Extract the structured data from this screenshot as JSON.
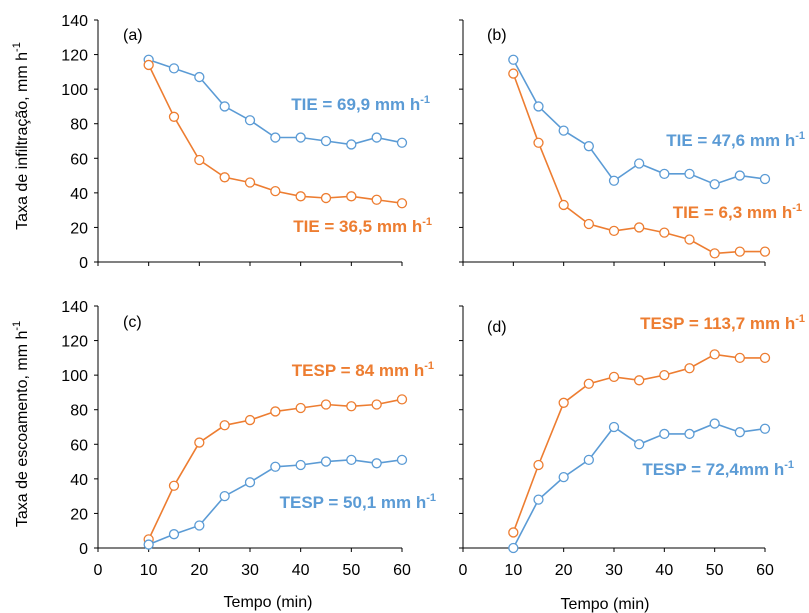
{
  "colors": {
    "blue": "#5b9bd5",
    "orange": "#ed7d31",
    "axis": "#000000"
  },
  "y_labels": {
    "top": "Taxa de infiltração, mm h",
    "bottom": "Taxa de escoamento, mm h",
    "unit_sup": "-1"
  },
  "x_label": "Tempo (min)",
  "chart_data": [
    {
      "id": "a",
      "panel_label": "(a)",
      "type": "line",
      "xlim": [
        0,
        60
      ],
      "ylim": [
        0,
        140
      ],
      "x_ticks": [],
      "y_ticks": [
        0,
        20,
        40,
        60,
        80,
        100,
        120,
        140
      ],
      "series": [
        {
          "color": "#5b9bd5",
          "x": [
            10,
            15,
            20,
            25,
            30,
            35,
            40,
            45,
            50,
            55,
            60
          ],
          "y": [
            117,
            112,
            107,
            90,
            82,
            72,
            72,
            70,
            68,
            72,
            69
          ]
        },
        {
          "color": "#ed7d31",
          "x": [
            10,
            15,
            20,
            25,
            30,
            35,
            40,
            45,
            50,
            55,
            60
          ],
          "y": [
            114,
            84,
            59,
            49,
            46,
            41,
            38,
            37,
            38,
            36,
            34
          ]
        }
      ],
      "annotations": [
        {
          "text": "TIE = 69,9 mm h",
          "sup": "-1",
          "color": "#5b9bd5"
        },
        {
          "text": "TIE = 36,5 mm h",
          "sup": "-1",
          "color": "#ed7d31"
        }
      ]
    },
    {
      "id": "b",
      "panel_label": "(b)",
      "type": "line",
      "xlim": [
        0,
        60
      ],
      "ylim": [
        0,
        140
      ],
      "x_ticks": [],
      "y_ticks": [],
      "series": [
        {
          "color": "#5b9bd5",
          "x": [
            10,
            15,
            20,
            25,
            30,
            35,
            40,
            45,
            50,
            55,
            60
          ],
          "y": [
            117,
            90,
            76,
            67,
            47,
            57,
            51,
            51,
            45,
            50,
            48
          ]
        },
        {
          "color": "#ed7d31",
          "x": [
            10,
            15,
            20,
            25,
            30,
            35,
            40,
            45,
            50,
            55,
            60
          ],
          "y": [
            109,
            69,
            33,
            22,
            18,
            20,
            17,
            13,
            5,
            6,
            6
          ]
        }
      ],
      "annotations": [
        {
          "text": "TIE = 47,6 mm h",
          "sup": "-1",
          "color": "#5b9bd5"
        },
        {
          "text": "TIE = 6,3 mm h",
          "sup": "-1",
          "color": "#ed7d31"
        }
      ]
    },
    {
      "id": "c",
      "panel_label": "(c)",
      "type": "line",
      "xlim": [
        0,
        60
      ],
      "ylim": [
        0,
        140
      ],
      "x_ticks": [
        0,
        10,
        20,
        30,
        40,
        50,
        60
      ],
      "y_ticks": [
        0,
        20,
        40,
        60,
        80,
        100,
        120,
        140
      ],
      "series": [
        {
          "color": "#ed7d31",
          "x": [
            10,
            15,
            20,
            25,
            30,
            35,
            40,
            45,
            50,
            55,
            60
          ],
          "y": [
            5,
            36,
            61,
            71,
            74,
            79,
            81,
            83,
            82,
            83,
            86
          ]
        },
        {
          "color": "#5b9bd5",
          "x": [
            10,
            15,
            20,
            25,
            30,
            35,
            40,
            45,
            50,
            55,
            60
          ],
          "y": [
            2,
            8,
            13,
            30,
            38,
            47,
            48,
            50,
            51,
            49,
            51
          ]
        }
      ],
      "annotations": [
        {
          "text": "TESP = 84 mm h",
          "sup": "-1",
          "color": "#ed7d31"
        },
        {
          "text": "TESP = 50,1 mm h",
          "sup": "-1",
          "color": "#5b9bd5"
        }
      ]
    },
    {
      "id": "d",
      "panel_label": "(d)",
      "type": "line",
      "xlim": [
        0,
        60
      ],
      "ylim": [
        0,
        140
      ],
      "x_ticks": [
        0,
        10,
        20,
        30,
        40,
        50,
        60
      ],
      "y_ticks": [],
      "series": [
        {
          "color": "#ed7d31",
          "x": [
            10,
            15,
            20,
            25,
            30,
            35,
            40,
            45,
            50,
            55,
            60
          ],
          "y": [
            9,
            48,
            84,
            95,
            99,
            97,
            100,
            104,
            112,
            110,
            110
          ]
        },
        {
          "color": "#5b9bd5",
          "x": [
            10,
            15,
            20,
            25,
            30,
            35,
            40,
            45,
            50,
            55,
            60
          ],
          "y": [
            0,
            28,
            41,
            51,
            70,
            60,
            66,
            66,
            72,
            67,
            69
          ]
        }
      ],
      "annotations": [
        {
          "text": "TESP = 113,7 mm h",
          "sup": "-1",
          "color": "#ed7d31"
        },
        {
          "text": "TESP = 72,4mm h",
          "sup": "-1",
          "color": "#5b9bd5"
        }
      ]
    }
  ]
}
